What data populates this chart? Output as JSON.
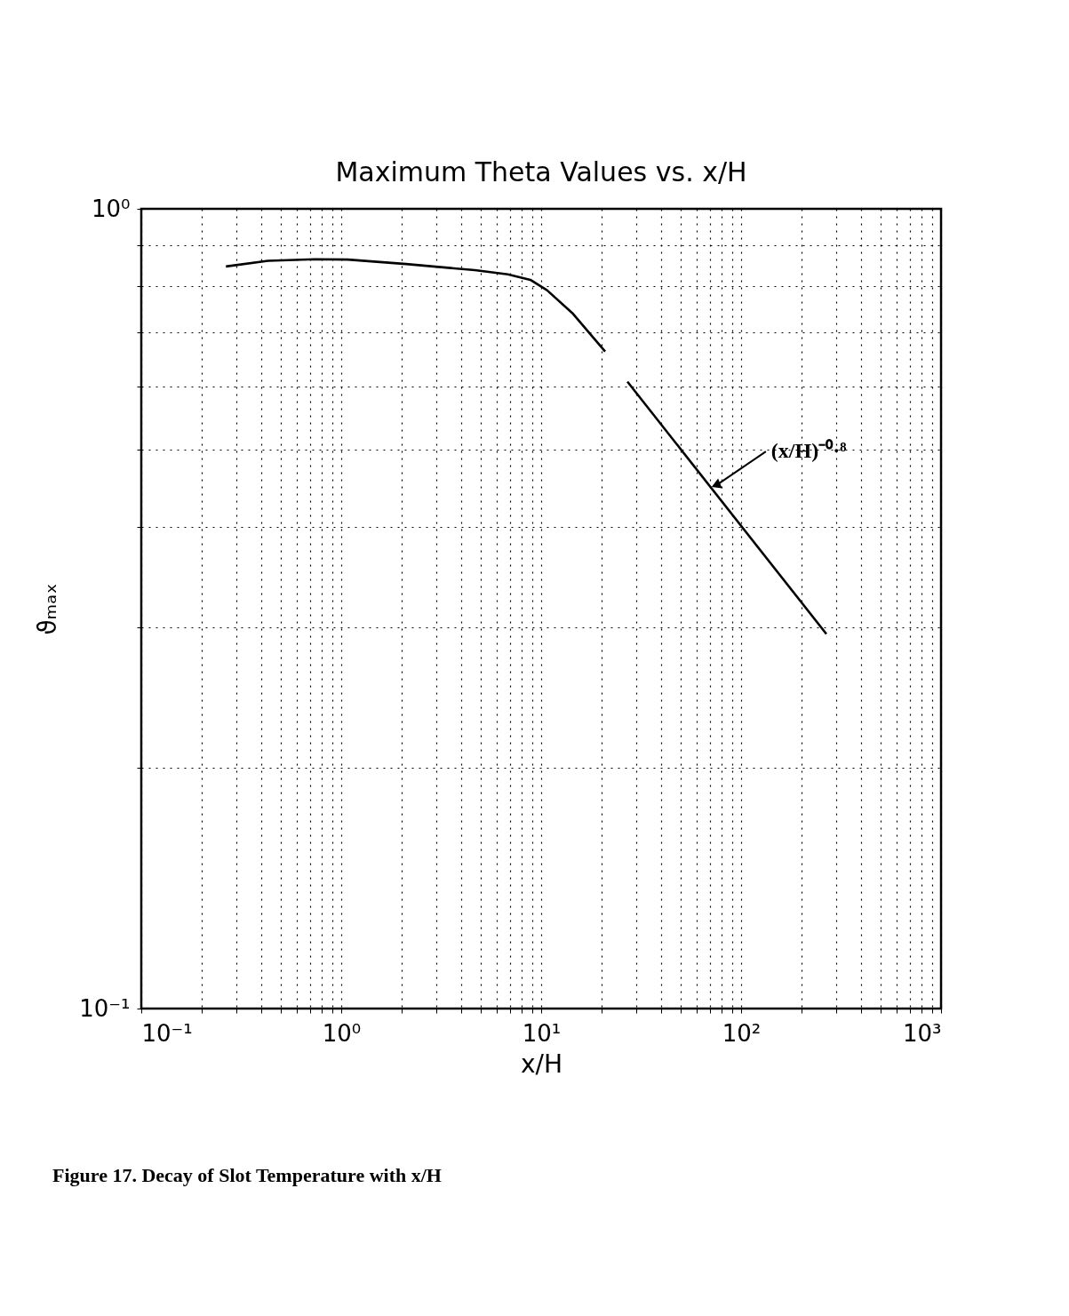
{
  "chart_data": {
    "type": "line",
    "title": "Maximum Theta Values vs. x/H",
    "xlabel": "x/H",
    "ylabel": "ϑₘₐₓ",
    "log": "xy",
    "series": [
      {
        "color": "#000000",
        "x": [
          0.265,
          0.43,
          0.74,
          1.08,
          2.11,
          4.66,
          6.82,
          8.83,
          10.7,
          14.3,
          20.9
        ],
        "values": [
          0.847,
          0.861,
          0.865,
          0.864,
          0.853,
          0.838,
          0.828,
          0.815,
          0.791,
          0.741,
          0.663
        ]
      },
      {
        "color": "#000000",
        "x": [
          27,
          267
        ],
        "values": [
          0.608,
          0.294
        ]
      }
    ],
    "xlim": [
      0.1,
      1000
    ],
    "ylim": [
      0.1,
      1
    ],
    "xticks": [
      {
        "value": 0.1,
        "label": "10⁻¹"
      },
      {
        "value": 0.2,
        "label": null
      },
      {
        "value": 0.3,
        "label": null
      },
      {
        "value": 0.4,
        "label": null
      },
      {
        "value": 0.5,
        "label": null
      },
      {
        "value": 0.6,
        "label": null
      },
      {
        "value": 0.7,
        "label": null
      },
      {
        "value": 0.8,
        "label": null
      },
      {
        "value": 0.9,
        "label": null
      },
      {
        "value": 1,
        "label": "10⁰"
      },
      {
        "value": 2,
        "label": null
      },
      {
        "value": 3,
        "label": null
      },
      {
        "value": 4,
        "label": null
      },
      {
        "value": 5,
        "label": null
      },
      {
        "value": 6,
        "label": null
      },
      {
        "value": 7,
        "label": null
      },
      {
        "value": 8,
        "label": null
      },
      {
        "value": 9,
        "label": null
      },
      {
        "value": 10,
        "label": "10¹"
      },
      {
        "value": 20,
        "label": null
      },
      {
        "value": 30,
        "label": null
      },
      {
        "value": 40,
        "label": null
      },
      {
        "value": 50,
        "label": null
      },
      {
        "value": 60,
        "label": null
      },
      {
        "value": 70,
        "label": null
      },
      {
        "value": 80,
        "label": null
      },
      {
        "value": 90,
        "label": null
      },
      {
        "value": 100,
        "label": "10²"
      },
      {
        "value": 200,
        "label": null
      },
      {
        "value": 300,
        "label": null
      },
      {
        "value": 400,
        "label": null
      },
      {
        "value": 500,
        "label": null
      },
      {
        "value": 600,
        "label": null
      },
      {
        "value": 700,
        "label": null
      },
      {
        "value": 800,
        "label": null
      },
      {
        "value": 900,
        "label": null
      },
      {
        "value": 1000,
        "label": "10³"
      }
    ],
    "yticks": [
      {
        "value": 0.1,
        "label": "10⁻¹"
      },
      {
        "value": 0.2,
        "label": null
      },
      {
        "value": 0.3,
        "label": null
      },
      {
        "value": 0.4,
        "label": null
      },
      {
        "value": 0.5,
        "label": null
      },
      {
        "value": 0.6,
        "label": null
      },
      {
        "value": 0.7,
        "label": null
      },
      {
        "value": 0.8,
        "label": null
      },
      {
        "value": 0.9,
        "label": null
      },
      {
        "value": 1,
        "label": "10⁰"
      }
    ],
    "grid": true,
    "legend": false,
    "marker": "none",
    "line_style": "solid",
    "annotations": [
      {
        "text": "(x/H)⁻⁰·⁸",
        "x": 76,
        "y": 0.452
      },
      "Figure 17. Decay of Slot Temperature with x/H"
    ]
  }
}
